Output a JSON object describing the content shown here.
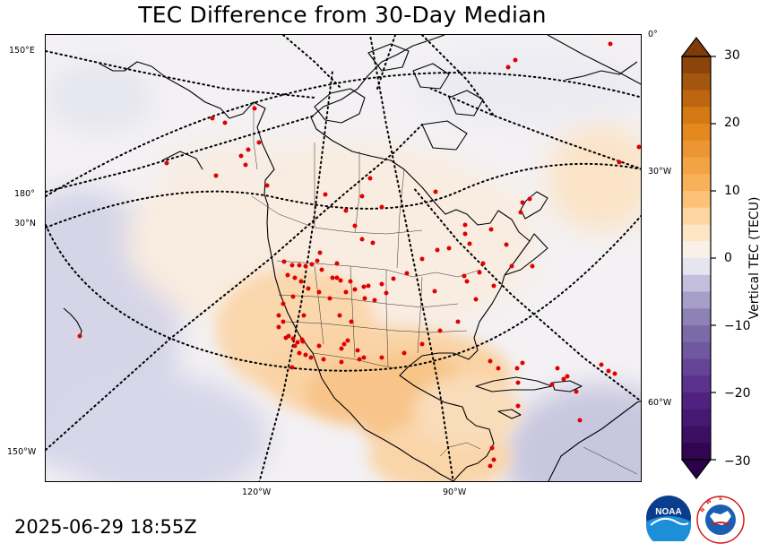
{
  "title": "TEC Difference from 30-Day Median",
  "timestamp": "2025-06-29 18:55Z",
  "colorbar": {
    "label": "Vertical TEC (TECU)",
    "min": -30,
    "max": 30,
    "ticks": [
      "30",
      "20",
      "10",
      "0",
      "−10",
      "−20",
      "−30"
    ],
    "extend": "both",
    "colormap": "PuOr_r (purple negative, orange-brown positive)"
  },
  "graticule_labels": {
    "left": [
      "150°E",
      "180°",
      "30°N",
      "150°W"
    ],
    "right": [
      "0°",
      "30°W",
      "60°W"
    ],
    "bottom": [
      "120°W",
      "90°W"
    ]
  },
  "map": {
    "projection": "polar stereographic (North America)",
    "station_color": "#e00000",
    "anomaly_regions": [
      {
        "region": "western United States",
        "sign": "positive",
        "approx_tecu": 8
      },
      {
        "region": "Gulf of Mexico / Mexico",
        "sign": "positive",
        "approx_tecu": 10
      },
      {
        "region": "Central America / Caribbean",
        "sign": "positive",
        "approx_tecu": 6
      },
      {
        "region": "central North Pacific",
        "sign": "negative",
        "approx_tecu": -4
      },
      {
        "region": "northern South America",
        "sign": "negative",
        "approx_tecu": -6
      }
    ]
  },
  "logos": {
    "noaa_text": "NOAA",
    "nws_text": "NATIONAL WEATHER SERVICE"
  }
}
